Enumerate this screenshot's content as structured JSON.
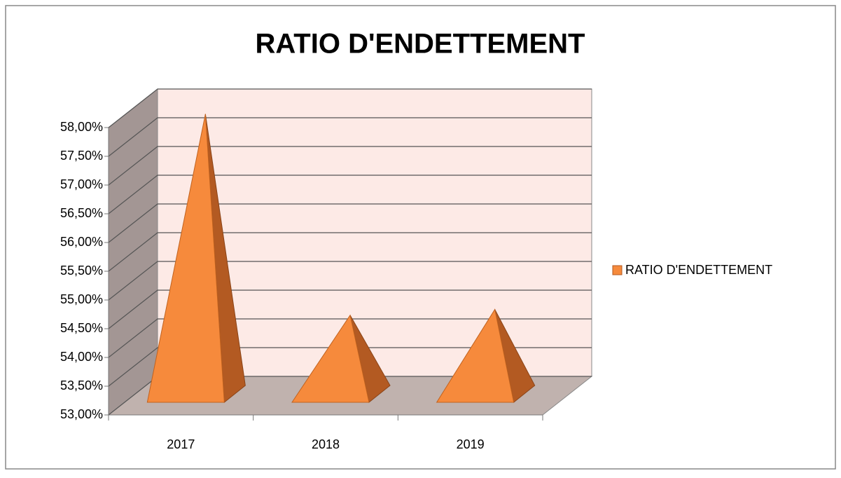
{
  "chart_data": {
    "type": "pyramid3d",
    "title": "RATIO D'ENDETTEMENT",
    "categories": [
      "2017",
      "2018",
      "2019"
    ],
    "series": [
      {
        "name": "RATIO D'ENDETTEMENT",
        "color": "#f68a3c",
        "values": [
          57.9,
          54.4,
          54.5
        ]
      }
    ],
    "ylim": [
      53,
      58
    ],
    "yticks": [
      {
        "value": 53,
        "label": "53,00%"
      },
      {
        "value": 53.5,
        "label": "53,50%"
      },
      {
        "value": 54,
        "label": "54,00%"
      },
      {
        "value": 54.5,
        "label": "54,50%"
      },
      {
        "value": 55,
        "label": "55,00%"
      },
      {
        "value": 55.5,
        "label": "55,50%"
      },
      {
        "value": 56,
        "label": "56,00%"
      },
      {
        "value": 56.5,
        "label": "56,50%"
      },
      {
        "value": 57,
        "label": "57,00%"
      },
      {
        "value": 57.5,
        "label": "57,50%"
      },
      {
        "value": 58,
        "label": "58,00%"
      }
    ],
    "grid": true,
    "legend": "right"
  }
}
